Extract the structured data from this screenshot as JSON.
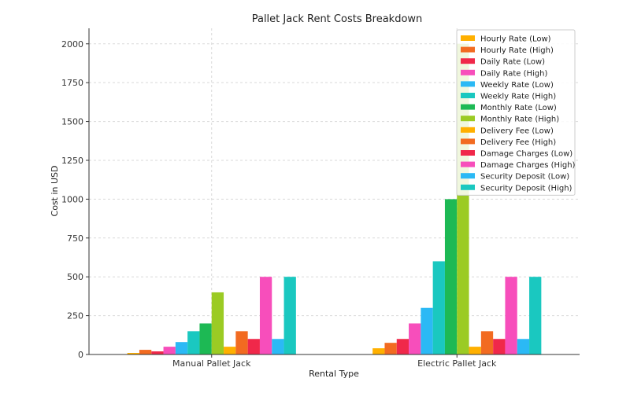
{
  "chart_data": {
    "type": "bar",
    "title": "Pallet Jack Rent  Costs Breakdown",
    "xlabel": "Rental Type",
    "ylabel": "Cost in USD",
    "categories": [
      "Manual Pallet Jack",
      "Electric Pallet Jack"
    ],
    "ylim": [
      0,
      2100
    ],
    "yticks": [
      0,
      250,
      500,
      750,
      1000,
      1250,
      1500,
      1750,
      2000
    ],
    "grid": true,
    "legend_position": "top-right",
    "series": [
      {
        "name": "Hourly Rate (Low)",
        "color": "#FFB000",
        "values": [
          10,
          40
        ]
      },
      {
        "name": "Hourly Rate (High)",
        "color": "#F26B21",
        "values": [
          30,
          75
        ]
      },
      {
        "name": "Daily Rate (Low)",
        "color": "#F0284A",
        "values": [
          20,
          100
        ]
      },
      {
        "name": "Daily Rate (High)",
        "color": "#F74EBB",
        "values": [
          50,
          200
        ]
      },
      {
        "name": "Weekly Rate (Low)",
        "color": "#2BB9F5",
        "values": [
          80,
          300
        ]
      },
      {
        "name": "Weekly Rate (High)",
        "color": "#1AC8C0",
        "values": [
          150,
          600
        ]
      },
      {
        "name": "Monthly Rate (Low)",
        "color": "#1DB954",
        "values": [
          200,
          1000
        ]
      },
      {
        "name": "Monthly Rate (High)",
        "color": "#9BCB24",
        "values": [
          400,
          2000
        ]
      },
      {
        "name": "Delivery Fee (Low)",
        "color": "#FFB000",
        "values": [
          50,
          50
        ]
      },
      {
        "name": "Delivery Fee (High)",
        "color": "#F26B21",
        "values": [
          150,
          150
        ]
      },
      {
        "name": "Damage Charges (Low)",
        "color": "#F0284A",
        "values": [
          100,
          100
        ]
      },
      {
        "name": "Damage Charges (High)",
        "color": "#F74EBB",
        "values": [
          500,
          500
        ]
      },
      {
        "name": "Security Deposit (Low)",
        "color": "#2BB9F5",
        "values": [
          100,
          100
        ]
      },
      {
        "name": "Security Deposit (High)",
        "color": "#1AC8C0",
        "values": [
          500,
          500
        ]
      }
    ]
  }
}
